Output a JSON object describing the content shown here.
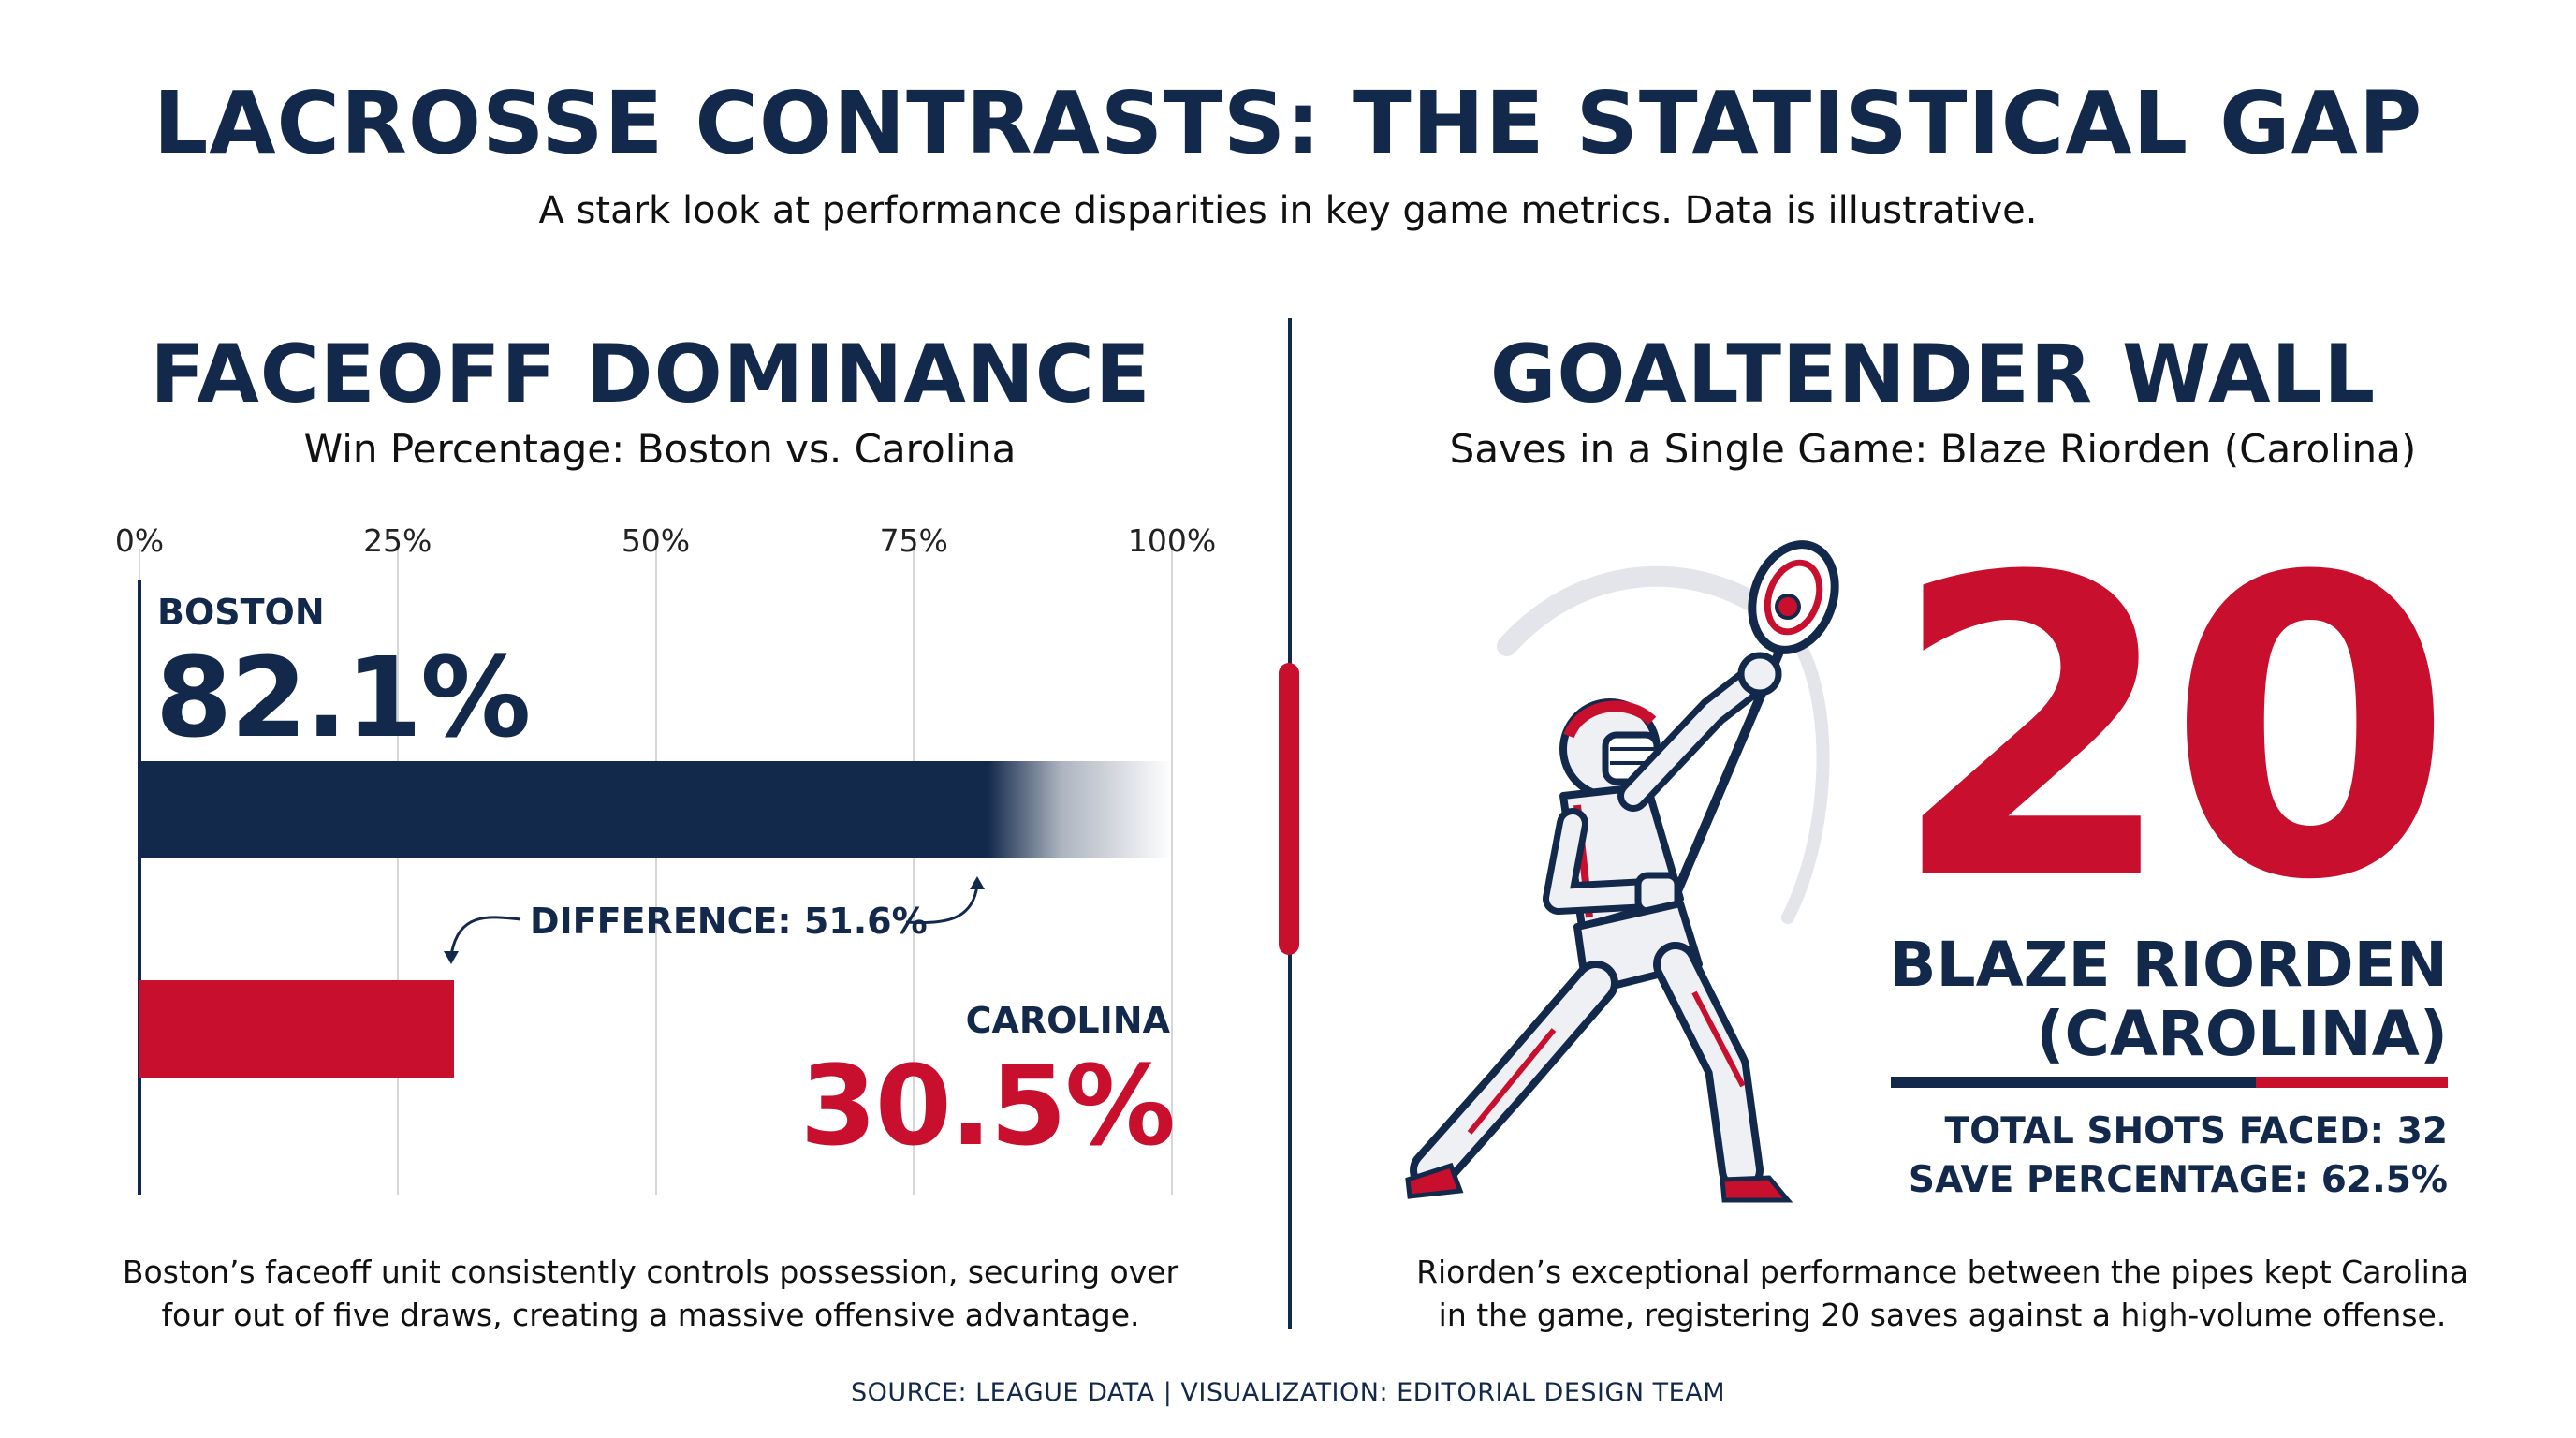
{
  "header": {
    "title": "LACROSSE CONTRASTS: THE STATISTICAL GAP",
    "subtitle": "A stark look at performance disparities in key game metrics. Data is illustrative."
  },
  "faceoff": {
    "title": "FACEOFF DOMINANCE",
    "subtitle": "Win Percentage: Boston vs. Carolina",
    "difference_label": "DIFFERENCE: 51.6%",
    "note_line1": "Boston’s faceoff unit consistently controls possession, securing over",
    "note_line2": "four out of five draws, creating a massive offensive advantage."
  },
  "chart_data": {
    "type": "bar",
    "orientation": "horizontal",
    "title": "FACEOFF DOMINANCE",
    "subtitle": "Win Percentage: Boston vs. Carolina",
    "xlim": [
      0,
      100
    ],
    "x_ticks": [
      "0%",
      "25%",
      "50%",
      "75%",
      "100%"
    ],
    "categories": [
      "BOSTON",
      "CAROLINA"
    ],
    "values": [
      82.1,
      30.5
    ],
    "value_labels": [
      "82.1%",
      "30.5%"
    ],
    "colors": [
      "#13294b",
      "#c8102e"
    ],
    "grid": true
  },
  "goalie": {
    "title": "GOALTENDER WALL",
    "subtitle": "Saves in a Single Game: Blaze Riorden (Carolina)",
    "saves": "20",
    "name": "BLAZE RIORDEN",
    "team": "(CAROLINA)",
    "shots_faced": "TOTAL SHOTS FACED: 32",
    "save_pct": "SAVE PERCENTAGE: 62.5%",
    "illustration": "lacrosse-goalie-icon",
    "note_line1": "Riorden’s exceptional performance between the pipes kept Carolina",
    "note_line2": "in the game, registering 20 saves against a high-volume offense."
  },
  "footer": {
    "source": "SOURCE: LEAGUE DATA | VISUALIZATION: EDITORIAL DESIGN TEAM"
  },
  "colors": {
    "navy": "#13294b",
    "red": "#c8102e"
  }
}
